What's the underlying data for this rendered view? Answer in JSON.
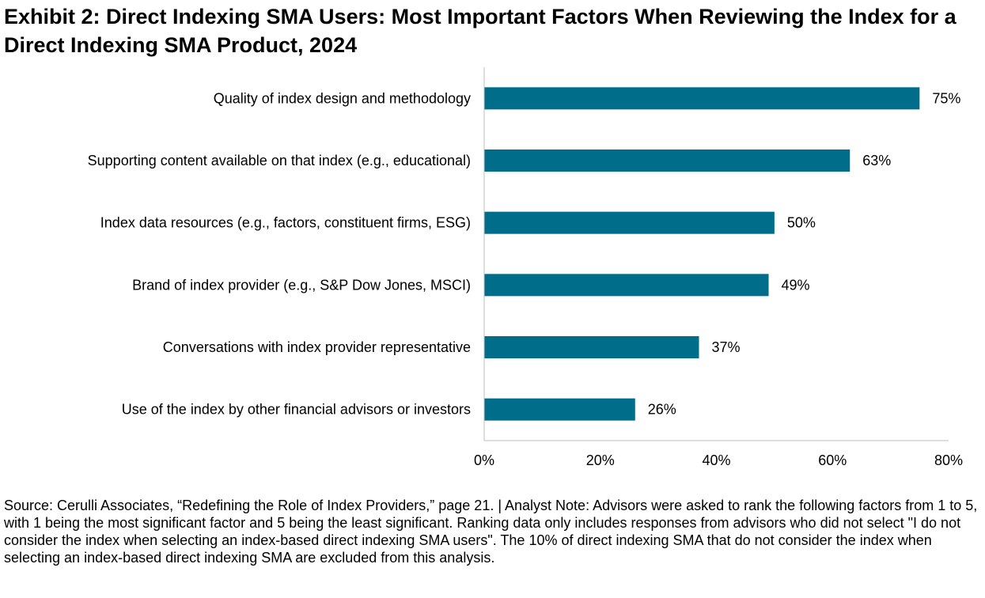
{
  "chart_data": {
    "type": "bar",
    "orientation": "horizontal",
    "title": "Exhibit 2: Direct Indexing SMA Users: Most Important Factors When Reviewing the Index for a Direct Indexing SMA Product, 2024",
    "categories": [
      "Quality of index design and methodology",
      "Supporting content available on that index (e.g., educational)",
      "Index data resources (e.g., factors, constituent firms, ESG)",
      "Brand of index provider (e.g., S&P Dow Jones, MSCI)",
      "Conversations with index provider representative",
      "Use of the index by other financial advisors or investors"
    ],
    "values": [
      75,
      63,
      50,
      49,
      37,
      26
    ],
    "value_labels": [
      "75%",
      "63%",
      "50%",
      "49%",
      "37%",
      "26%"
    ],
    "xlim": [
      0,
      80
    ],
    "xticks": [
      0,
      20,
      40,
      60,
      80
    ],
    "xtick_labels": [
      "0%",
      "20%",
      "40%",
      "60%",
      "80%"
    ],
    "xlabel": "",
    "ylabel": "",
    "grid": false,
    "legend": "none",
    "bar_color": "#006E8A",
    "axis_color": "#BFBFBF"
  },
  "footnote": "Source: Cerulli Associates, “Redefining the Role of Index Providers,” page 21. | Analyst Note: Advisors were asked to rank the following factors from 1 to 5, with 1 being the most significant factor and 5 being the least significant. Ranking data only includes responses from advisors who did not select \"I do not consider the index when selecting an index-based direct indexing SMA users\". The 10% of direct indexing SMA that do not consider the index when selecting an index-based direct indexing SMA are excluded from this analysis."
}
